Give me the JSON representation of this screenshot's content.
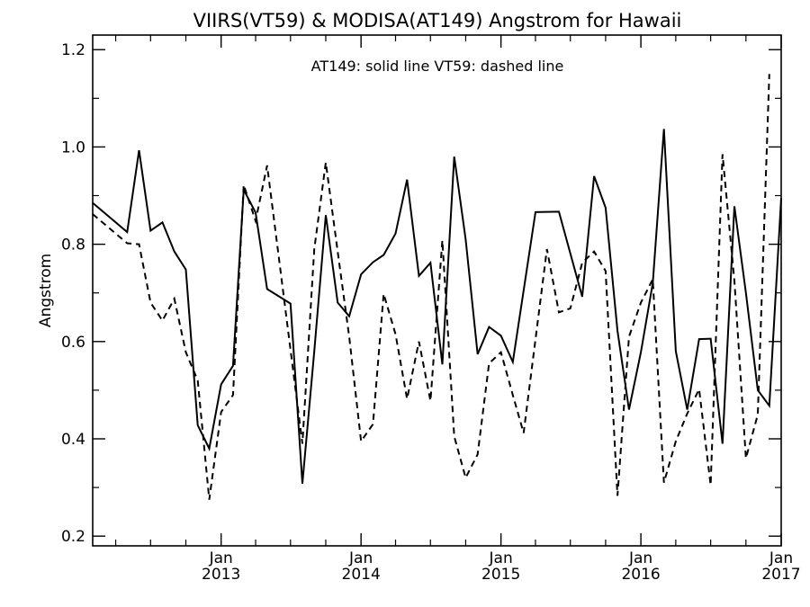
{
  "chart_data": {
    "type": "line",
    "title": "VIIRS(VT59) & MODISA(AT149)  Angstrom for Hawaii",
    "annotation": "AT149: solid line   VT59: dashed line",
    "xlabel": "",
    "ylabel": "Angstrom",
    "xlim": [
      "2012-02-01",
      "2017-01-01"
    ],
    "ylim": [
      0.18,
      1.23
    ],
    "grid": false,
    "y_ticks": [
      "0.2",
      "0.4",
      "0.6",
      "0.8",
      "1.0",
      "1.2"
    ],
    "x_ticks": [
      {
        "date": "2013-01-01",
        "month": "Jan",
        "year": "2013"
      },
      {
        "date": "2014-01-01",
        "month": "Jan",
        "year": "2014"
      },
      {
        "date": "2015-01-01",
        "month": "Jan",
        "year": "2015"
      },
      {
        "date": "2016-01-01",
        "month": "Jan",
        "year": "2016"
      },
      {
        "date": "2017-01-01",
        "month": "Jan",
        "year": "2017"
      }
    ],
    "series": [
      {
        "name": "AT149",
        "style": "solid",
        "color": "#000000",
        "points": [
          [
            "2012-02-01",
            0.885
          ],
          [
            "2012-05-01",
            0.825
          ],
          [
            "2012-06-01",
            0.993
          ],
          [
            "2012-07-01",
            0.828
          ],
          [
            "2012-08-01",
            0.845
          ],
          [
            "2012-09-01",
            0.785
          ],
          [
            "2012-10-01",
            0.748
          ],
          [
            "2012-11-01",
            0.428
          ],
          [
            "2012-12-01",
            0.38
          ],
          [
            "2013-01-01",
            0.512
          ],
          [
            "2013-02-01",
            0.55
          ],
          [
            "2013-03-01",
            0.912
          ],
          [
            "2013-04-01",
            0.865
          ],
          [
            "2013-05-01",
            0.708
          ],
          [
            "2013-07-01",
            0.678
          ],
          [
            "2013-08-01",
            0.308
          ],
          [
            "2013-09-01",
            0.58
          ],
          [
            "2013-10-01",
            0.86
          ],
          [
            "2013-11-01",
            0.68
          ],
          [
            "2013-12-01",
            0.652
          ],
          [
            "2014-01-01",
            0.738
          ],
          [
            "2014-02-01",
            0.763
          ],
          [
            "2014-03-01",
            0.778
          ],
          [
            "2014-04-01",
            0.822
          ],
          [
            "2014-05-01",
            0.933
          ],
          [
            "2014-06-01",
            0.735
          ],
          [
            "2014-07-01",
            0.762
          ],
          [
            "2014-08-01",
            0.553
          ],
          [
            "2014-09-01",
            0.98
          ],
          [
            "2014-10-01",
            0.81
          ],
          [
            "2014-11-01",
            0.574
          ],
          [
            "2014-12-01",
            0.63
          ],
          [
            "2015-01-01",
            0.612
          ],
          [
            "2015-02-01",
            0.558
          ],
          [
            "2015-04-01",
            0.866
          ],
          [
            "2015-06-01",
            0.867
          ],
          [
            "2015-08-01",
            0.692
          ],
          [
            "2015-09-01",
            0.94
          ],
          [
            "2015-10-01",
            0.875
          ],
          [
            "2015-11-01",
            0.622
          ],
          [
            "2015-12-01",
            0.46
          ],
          [
            "2016-01-01",
            0.578
          ],
          [
            "2016-02-01",
            0.72
          ],
          [
            "2016-03-01",
            1.037
          ],
          [
            "2016-04-01",
            0.58
          ],
          [
            "2016-05-01",
            0.46
          ],
          [
            "2016-06-01",
            0.605
          ],
          [
            "2016-07-01",
            0.606
          ],
          [
            "2016-08-01",
            0.39
          ],
          [
            "2016-09-01",
            0.878
          ],
          [
            "2016-10-01",
            0.7
          ],
          [
            "2016-11-01",
            0.5
          ],
          [
            "2016-12-01",
            0.468
          ],
          [
            "2017-01-01",
            0.895
          ]
        ]
      },
      {
        "name": "VT59",
        "style": "dashed",
        "color": "#000000",
        "points": [
          [
            "2012-02-01",
            0.862
          ],
          [
            "2012-05-01",
            0.802
          ],
          [
            "2012-06-01",
            0.8
          ],
          [
            "2012-07-01",
            0.68
          ],
          [
            "2012-08-01",
            0.643
          ],
          [
            "2012-09-01",
            0.688
          ],
          [
            "2012-10-01",
            0.578
          ],
          [
            "2012-11-01",
            0.52
          ],
          [
            "2012-12-01",
            0.275
          ],
          [
            "2013-01-01",
            0.455
          ],
          [
            "2013-02-01",
            0.49
          ],
          [
            "2013-03-01",
            0.922
          ],
          [
            "2013-04-01",
            0.848
          ],
          [
            "2013-05-01",
            0.962
          ],
          [
            "2013-06-01",
            0.77
          ],
          [
            "2013-08-01",
            0.39
          ],
          [
            "2013-09-01",
            0.79
          ],
          [
            "2013-10-01",
            0.968
          ],
          [
            "2013-11-01",
            0.785
          ],
          [
            "2013-12-01",
            0.61
          ],
          [
            "2014-01-01",
            0.395
          ],
          [
            "2014-02-01",
            0.43
          ],
          [
            "2014-03-01",
            0.698
          ],
          [
            "2014-04-01",
            0.615
          ],
          [
            "2014-05-01",
            0.482
          ],
          [
            "2014-06-01",
            0.6
          ],
          [
            "2014-07-01",
            0.478
          ],
          [
            "2014-08-01",
            0.808
          ],
          [
            "2014-09-01",
            0.405
          ],
          [
            "2014-10-01",
            0.32
          ],
          [
            "2014-11-01",
            0.368
          ],
          [
            "2014-12-01",
            0.555
          ],
          [
            "2015-01-01",
            0.578
          ],
          [
            "2015-02-01",
            0.49
          ],
          [
            "2015-03-01",
            0.412
          ],
          [
            "2015-05-01",
            0.79
          ],
          [
            "2015-06-01",
            0.66
          ],
          [
            "2015-07-01",
            0.668
          ],
          [
            "2015-08-01",
            0.762
          ],
          [
            "2015-09-01",
            0.785
          ],
          [
            "2015-10-01",
            0.745
          ],
          [
            "2015-11-01",
            0.283
          ],
          [
            "2015-12-01",
            0.61
          ],
          [
            "2016-01-01",
            0.68
          ],
          [
            "2016-02-01",
            0.728
          ],
          [
            "2016-03-01",
            0.31
          ],
          [
            "2016-04-01",
            0.395
          ],
          [
            "2016-05-01",
            0.452
          ],
          [
            "2016-06-01",
            0.502
          ],
          [
            "2016-07-01",
            0.305
          ],
          [
            "2016-08-01",
            0.985
          ],
          [
            "2016-09-01",
            0.725
          ],
          [
            "2016-10-01",
            0.36
          ],
          [
            "2016-11-01",
            0.45
          ],
          [
            "2016-12-01",
            1.15
          ]
        ]
      }
    ]
  }
}
